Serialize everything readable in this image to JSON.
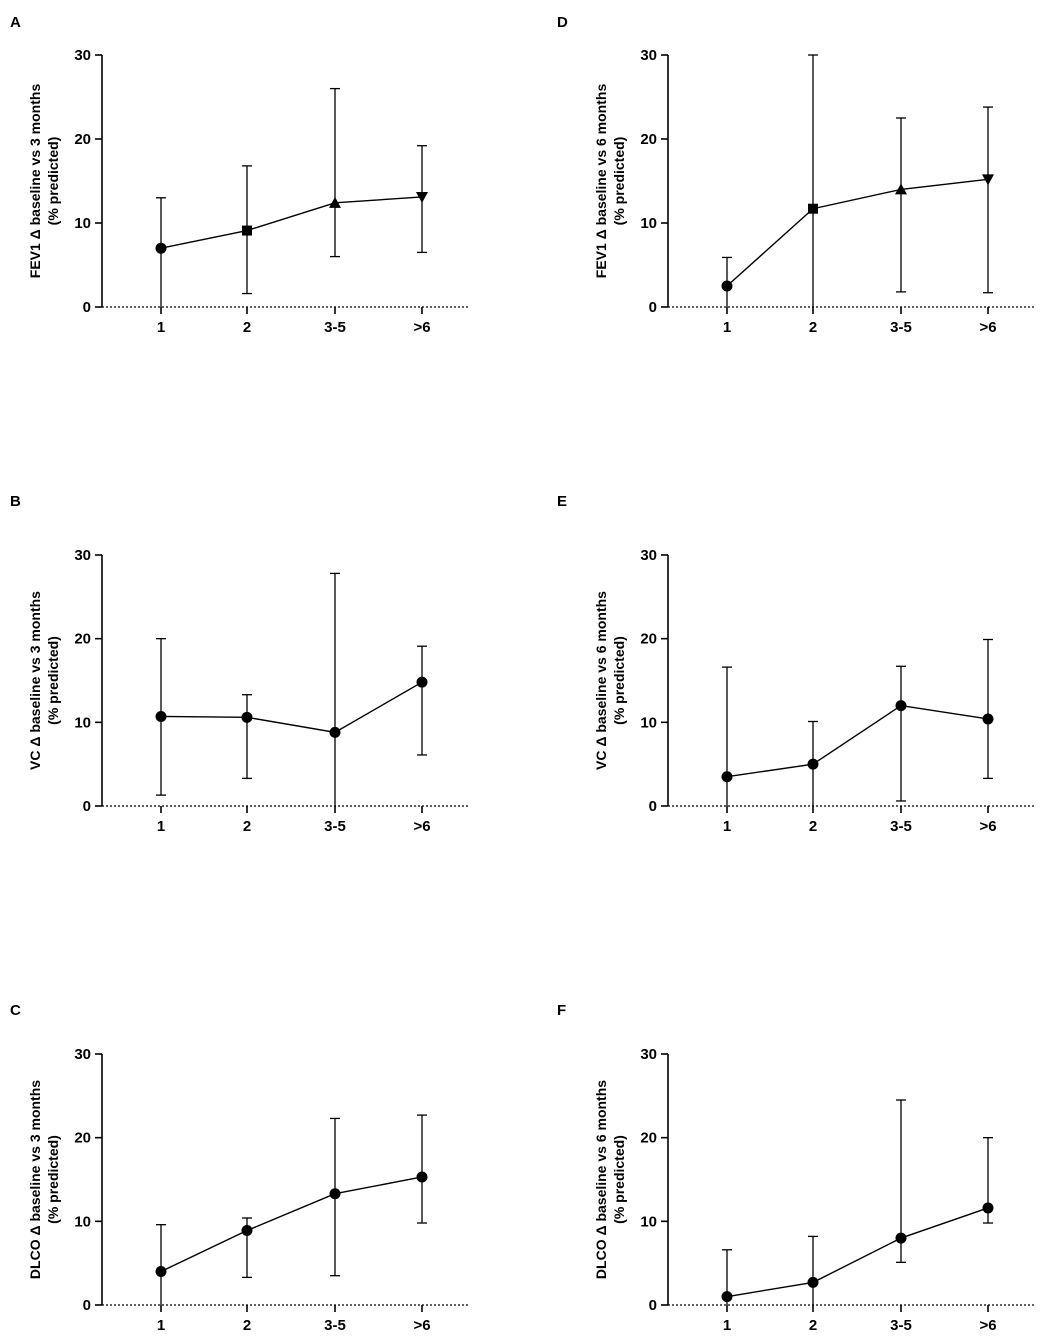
{
  "chart_data": [
    {
      "panel": "A",
      "type": "line",
      "ylabel_line1": "FEV1 Δ baseline vs 3 months",
      "ylabel_line2": "(% predicted)",
      "categories": [
        "1",
        "2",
        "3-5",
        ">6"
      ],
      "values": [
        7.0,
        9.1,
        12.4,
        13.1
      ],
      "err_low": [
        0,
        1.6,
        6.0,
        6.5
      ],
      "err_high": [
        13.0,
        16.8,
        26.0,
        19.2
      ],
      "markers": [
        "circle",
        "square",
        "triangle-up",
        "triangle-down"
      ],
      "yticks": [
        0,
        10,
        20,
        30
      ],
      "ylim": [
        0,
        30
      ]
    },
    {
      "panel": "B",
      "type": "line",
      "ylabel_line1": "VC Δ baseline vs 3 months",
      "ylabel_line2": "(% predicted)",
      "categories": [
        "1",
        "2",
        "3-5",
        ">6"
      ],
      "values": [
        10.7,
        10.6,
        8.8,
        14.8
      ],
      "err_low": [
        1.3,
        3.3,
        0,
        6.1
      ],
      "err_high": [
        20.0,
        13.3,
        27.8,
        19.1
      ],
      "markers": [
        "circle",
        "circle",
        "circle",
        "circle"
      ],
      "yticks": [
        0,
        10,
        20,
        30
      ],
      "ylim": [
        0,
        30
      ]
    },
    {
      "panel": "C",
      "type": "line",
      "ylabel_line1": "DLCO Δ baseline vs 3 months",
      "ylabel_line2": "(% predicted)",
      "categories": [
        "1",
        "2",
        "3-5",
        ">6"
      ],
      "values": [
        4.0,
        8.9,
        13.3,
        15.3
      ],
      "err_low": [
        0,
        3.3,
        3.5,
        9.8
      ],
      "err_high": [
        9.6,
        10.4,
        22.3,
        22.7
      ],
      "markers": [
        "circle",
        "circle",
        "circle",
        "circle"
      ],
      "yticks": [
        0,
        10,
        20,
        30
      ],
      "ylim": [
        0,
        30
      ]
    },
    {
      "panel": "D",
      "type": "line",
      "ylabel_line1": "FEV1 Δ baseline vs 6 months",
      "ylabel_line2": "(% predicted)",
      "categories": [
        "1",
        "2",
        "3-5",
        ">6"
      ],
      "values": [
        2.5,
        11.7,
        14.0,
        15.2
      ],
      "err_low": [
        0,
        0,
        1.8,
        1.7
      ],
      "err_high": [
        5.9,
        30.0,
        22.5,
        23.8
      ],
      "markers": [
        "circle",
        "square",
        "triangle-up",
        "triangle-down"
      ],
      "yticks": [
        0,
        10,
        20,
        30
      ],
      "ylim": [
        0,
        30
      ]
    },
    {
      "panel": "E",
      "type": "line",
      "ylabel_line1": "VC Δ baseline vs 6 months",
      "ylabel_line2": "(% predicted)",
      "categories": [
        "1",
        "2",
        "3-5",
        ">6"
      ],
      "values": [
        3.5,
        5.0,
        12.0,
        10.4
      ],
      "err_low": [
        0,
        0,
        0.6,
        3.3
      ],
      "err_high": [
        16.6,
        10.1,
        16.7,
        19.9
      ],
      "markers": [
        "circle",
        "circle",
        "circle",
        "circle"
      ],
      "yticks": [
        0,
        10,
        20,
        30
      ],
      "ylim": [
        0,
        30
      ]
    },
    {
      "panel": "F",
      "type": "line",
      "ylabel_line1": "DLCO Δ baseline vs 6 months",
      "ylabel_line2": "(% predicted)",
      "categories": [
        "1",
        "2",
        "3-5",
        ">6"
      ],
      "values": [
        1.0,
        2.7,
        8.0,
        11.6
      ],
      "err_low": [
        0,
        0,
        5.1,
        9.8
      ],
      "err_high": [
        6.6,
        8.2,
        24.5,
        20.0
      ],
      "markers": [
        "circle",
        "circle",
        "circle",
        "circle"
      ],
      "yticks": [
        0,
        10,
        20,
        30
      ],
      "ylim": [
        0,
        30
      ]
    }
  ]
}
